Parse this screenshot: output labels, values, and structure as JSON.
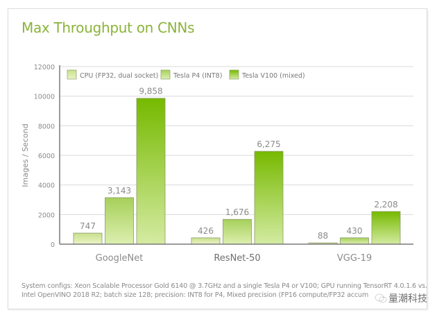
{
  "chart_data": {
    "type": "bar",
    "title": "Max Throughput on CNNs",
    "xlabel": "",
    "ylabel": "Images / Second",
    "ylim": [
      0,
      12000
    ],
    "yticks": [
      0,
      2000,
      4000,
      6000,
      8000,
      10000,
      12000
    ],
    "ytick_labels": [
      "0",
      "2000",
      "4000",
      "6000",
      "8000",
      "10000",
      "12000"
    ],
    "grid": true,
    "legend_position": "top-left",
    "categories": [
      "GoogleNet",
      "ResNet-50",
      "VGG-19"
    ],
    "series": [
      {
        "name": "CPU (FP32, dual socket)",
        "values": [
          747,
          426,
          88
        ],
        "labels": [
          "747",
          "426",
          "88"
        ],
        "color_top": "#c9e08c",
        "color_bottom": "#eaf4c6"
      },
      {
        "name": "Tesla P4 (INT8)",
        "values": [
          3143,
          1676,
          430
        ],
        "labels": [
          "3,143",
          "1,676",
          "430"
        ],
        "color_top": "#a6d05a",
        "color_bottom": "#ddefb0"
      },
      {
        "name": "Tesla V100 (mixed)",
        "values": [
          9858,
          6275,
          2208
        ],
        "labels": [
          "9,858",
          "6,275",
          "2,208"
        ],
        "color_top": "#76b900",
        "color_bottom": "#d4eba2"
      }
    ]
  },
  "footnote": {
    "line1": "System configs: Xeon Scalable Processor Gold 6140 @ 3.7GHz and a single Tesla P4 or V100; GPU running TensorRT 4.0.1.6 vs.",
    "line2": "Intel OpenVINO 2018 R2; batch size 128; precision: INT8 for P4, Mixed precision (FP16 compute/FP32 accum"
  },
  "watermark": {
    "text": "量潮科技",
    "icon": "wechat-icon"
  },
  "colors": {
    "title": "#8bb33a",
    "axis": "#7a7a7a",
    "grid": "#d9d9d9",
    "text": "#8a8a8a"
  }
}
